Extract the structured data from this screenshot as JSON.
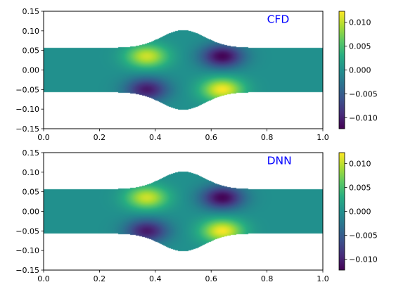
{
  "chart_data": [
    {
      "type": "heatmap",
      "annotation": "CFD",
      "xlim": [
        0.0,
        1.0
      ],
      "ylim": [
        -0.15,
        0.15
      ],
      "x_ticks": [
        "0.0",
        "0.2",
        "0.4",
        "0.6",
        "0.8",
        "1.0"
      ],
      "y_ticks": [
        "0.15",
        "0.10",
        "0.05",
        "0.00",
        "−0.05",
        "−0.10",
        "−0.15"
      ],
      "colorbar": {
        "range": [
          -0.0123,
          0.0123
        ],
        "ticks": [
          "0.010",
          "0.005",
          "0.000",
          "−0.005",
          "−0.010"
        ]
      },
      "channel": {
        "half_width": 0.057,
        "bulge_half_width": 0.102,
        "bulge_center_x": 0.5
      },
      "field": {
        "lobes": [
          {
            "x": 0.37,
            "y": 0.035,
            "value": 0.0105
          },
          {
            "x": 0.37,
            "y": -0.05,
            "value": -0.0105
          },
          {
            "x": 0.64,
            "y": 0.035,
            "value": -0.012
          },
          {
            "x": 0.64,
            "y": -0.05,
            "value": 0.012
          }
        ]
      }
    },
    {
      "type": "heatmap",
      "annotation": "DNN",
      "xlim": [
        0.0,
        1.0
      ],
      "ylim": [
        -0.15,
        0.15
      ],
      "x_ticks": [
        "0.0",
        "0.2",
        "0.4",
        "0.6",
        "0.8",
        "1.0"
      ],
      "y_ticks": [
        "0.15",
        "0.10",
        "0.05",
        "0.00",
        "−0.05",
        "−0.10",
        "−0.15"
      ],
      "colorbar": {
        "range": [
          -0.0123,
          0.0123
        ],
        "ticks": [
          "0.010",
          "0.005",
          "0.000",
          "−0.005",
          "−0.010"
        ]
      },
      "channel": {
        "half_width": 0.057,
        "bulge_half_width": 0.102,
        "bulge_center_x": 0.5
      },
      "field": {
        "lobes": [
          {
            "x": 0.37,
            "y": 0.035,
            "value": 0.0105
          },
          {
            "x": 0.37,
            "y": -0.05,
            "value": -0.0105
          },
          {
            "x": 0.64,
            "y": 0.035,
            "value": -0.012
          },
          {
            "x": 0.64,
            "y": -0.05,
            "value": 0.012
          }
        ]
      }
    }
  ],
  "colors": {
    "annotation": "#0000ff",
    "colormap": [
      "#440154",
      "#472c7a",
      "#3b518b",
      "#2c718e",
      "#21908d",
      "#27ad81",
      "#5cc863",
      "#aadc32",
      "#fde725"
    ]
  }
}
